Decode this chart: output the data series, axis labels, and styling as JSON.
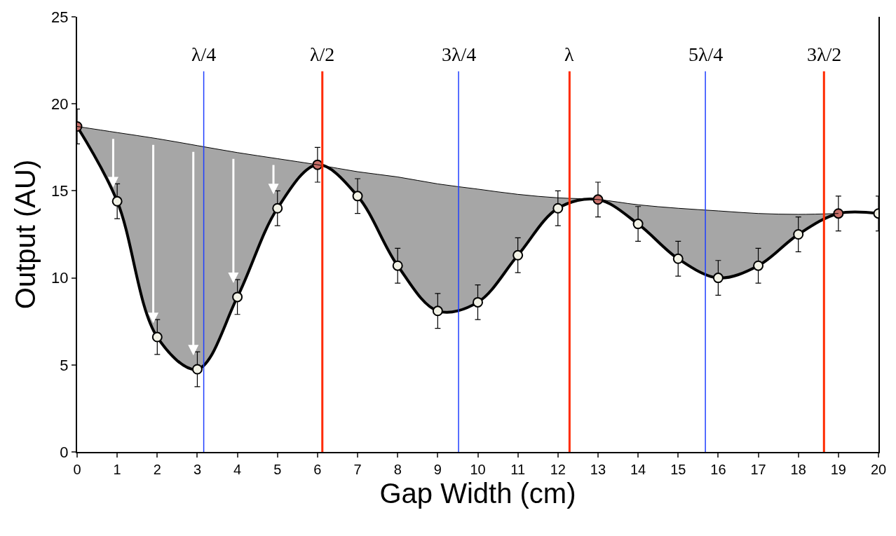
{
  "chart_data": {
    "type": "line",
    "xlabel": "Gap Width (cm)",
    "ylabel": "Output (AU)",
    "x": [
      0,
      1,
      2,
      3,
      4,
      5,
      6,
      7,
      8,
      9,
      10,
      11,
      12,
      13,
      14,
      15,
      16,
      17,
      18,
      19,
      20
    ],
    "series": [
      {
        "color": "#000000",
        "values": [
          18.7,
          14.4,
          6.6,
          4.75,
          8.9,
          14.0,
          16.5,
          14.7,
          10.7,
          8.1,
          8.6,
          11.3,
          14.0,
          14.5,
          13.1,
          11.1,
          10.0,
          10.7,
          12.5,
          13.7,
          13.7
        ],
        "colors": [
          "#c8706a",
          "#f2f2e6",
          "#f2f2e6",
          "#f2f2e6",
          "#f2f2e6",
          "#f2f2e6",
          "#c8706a",
          "#f2f2e6",
          "#f2f2e6",
          "#f2f2e6",
          "#f2f2e6",
          "#f2f2e6",
          "#f2f2e6",
          "#c8706a",
          "#f2f2e6",
          "#f2f2e6",
          "#f2f2e6",
          "#f2f2e6",
          "#f2f2e6",
          "#c8706a",
          "#f2f2e6"
        ],
        "errors": [
          1,
          1,
          1,
          1,
          1,
          1,
          1,
          1,
          1,
          1,
          1,
          1,
          1,
          1,
          1,
          1,
          1,
          1,
          1,
          1,
          1
        ],
        "lower": [
          18.7,
          14.4,
          6.6,
          4.75,
          8.9,
          14.0,
          16.5,
          14.7,
          10.7,
          8.1,
          8.6,
          11.3,
          14.0,
          14.5,
          13.1,
          11.1,
          10.0,
          10.7,
          12.5,
          13.7,
          null
        ],
        "upper": [
          18.7,
          18.35,
          18.0,
          17.6,
          17.2,
          16.85,
          16.5,
          16.1,
          15.8,
          15.4,
          15.1,
          14.8,
          14.6,
          14.5,
          14.2,
          14.0,
          13.85,
          13.7,
          13.65,
          13.7,
          null
        ]
      },
      {
        "type": "line",
        "marker": "none",
        "color": "#000000",
        "x": [
          0,
          1,
          2,
          3,
          4,
          5,
          6,
          7,
          8,
          9,
          10,
          11,
          12,
          13,
          14,
          15,
          16,
          17,
          18,
          19
        ],
        "values": [
          18.7,
          18.35,
          18.0,
          17.6,
          17.2,
          16.85,
          16.5,
          16.1,
          15.8,
          15.4,
          15.1,
          14.8,
          14.6,
          14.5,
          14.2,
          14.0,
          13.85,
          13.7,
          13.65,
          13.7
        ]
      }
    ],
    "xlim": [
      0,
      20
    ],
    "ylim": [
      0,
      25
    ],
    "xticks": [
      0,
      1,
      2,
      3,
      4,
      5,
      6,
      7,
      8,
      9,
      10,
      11,
      12,
      13,
      14,
      15,
      16,
      17,
      18,
      19,
      20
    ],
    "yticks": [
      0,
      5,
      10,
      15,
      20,
      25
    ],
    "marker": "circle",
    "line_style": "solid",
    "ref_lines": [
      {
        "axis": "x",
        "value": 3.16,
        "label": "λ/4",
        "color": "#1f3fff"
      },
      {
        "axis": "x",
        "value": 6.12,
        "label": "λ/2",
        "color": "#ff2a00"
      },
      {
        "axis": "x",
        "value": 9.52,
        "label": "3λ/4",
        "color": "#1f3fff"
      },
      {
        "axis": "x",
        "value": 12.29,
        "label": "λ",
        "color": "#ff2a00"
      },
      {
        "axis": "x",
        "value": 15.68,
        "label": "5λ/4",
        "color": "#1f3fff"
      },
      {
        "axis": "x",
        "value": 18.64,
        "label": "3λ/2",
        "color": "#ff2a00"
      }
    ]
  }
}
